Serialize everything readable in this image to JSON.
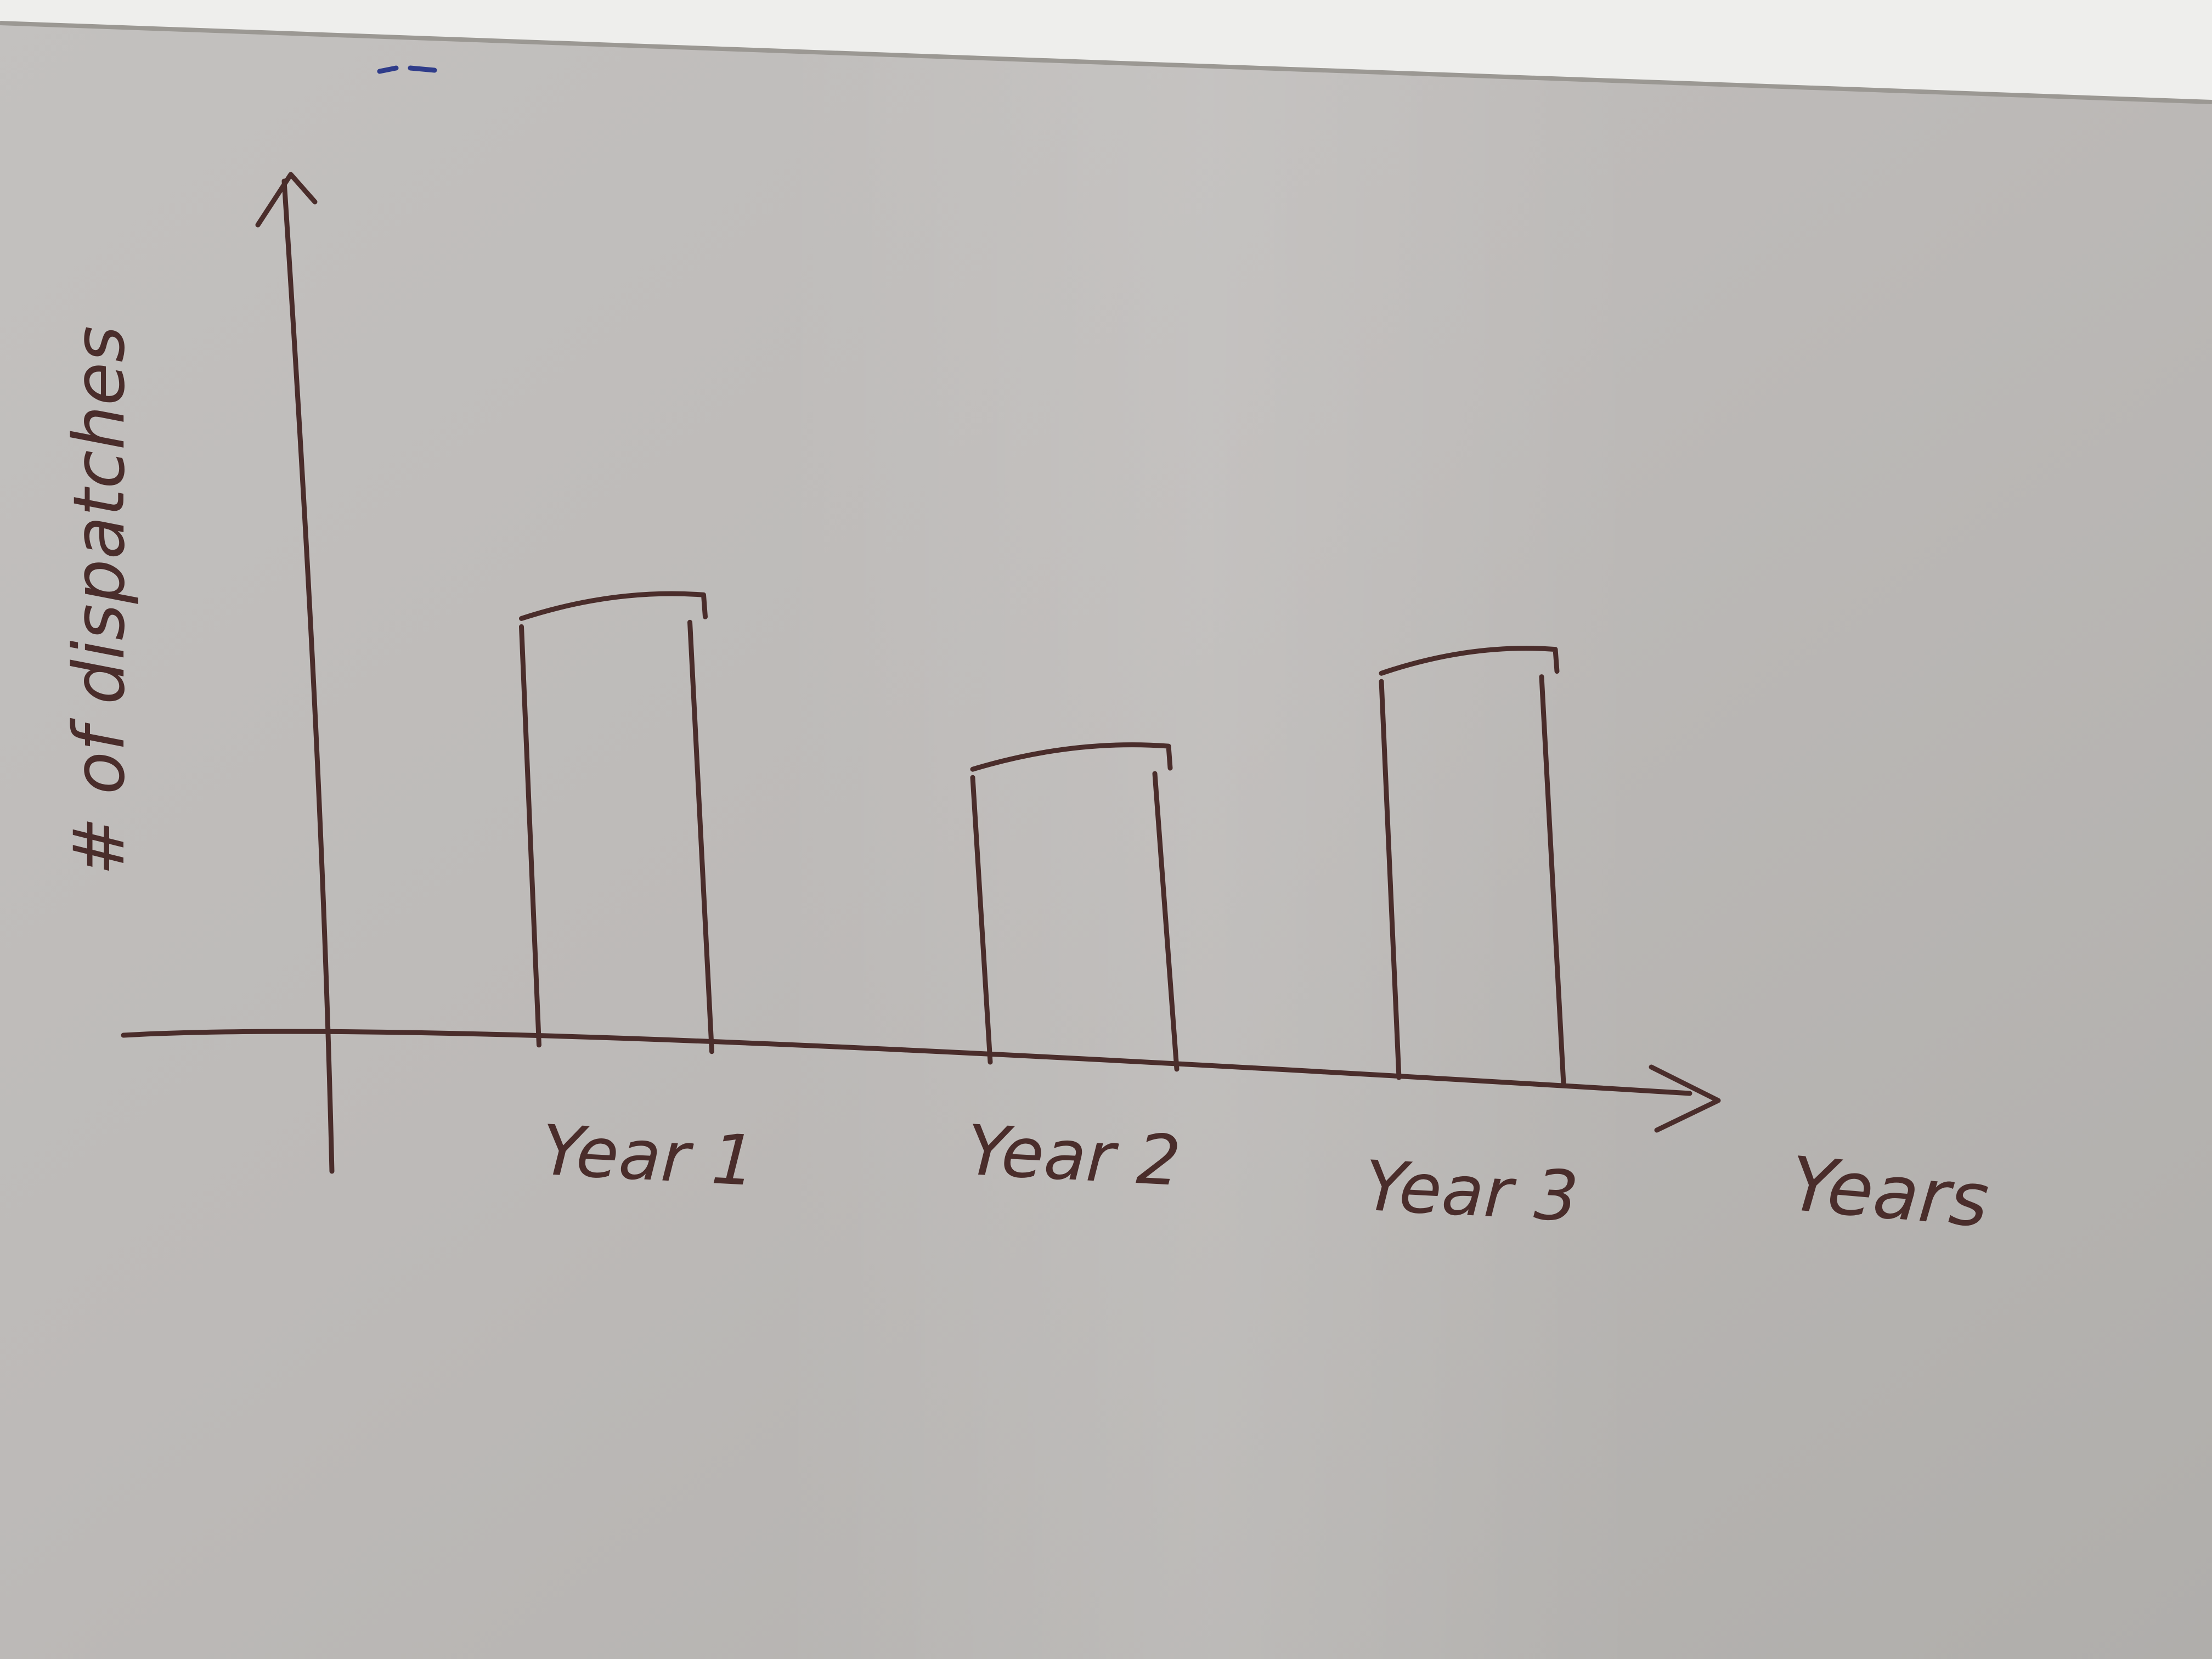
{
  "chart_data": {
    "type": "bar",
    "categories": [
      "Year 1",
      "Year 2",
      "Year 3"
    ],
    "values": [
      10,
      7,
      9.5
    ],
    "title": "",
    "xlabel": "Years",
    "ylabel": "# of dispatches",
    "ylim": [
      0,
      16
    ],
    "grid": false,
    "legend": "none",
    "colors": {
      "ink": "#4a2d2b",
      "board": "#bdbab7",
      "frame": "#f1f1ef"
    }
  }
}
